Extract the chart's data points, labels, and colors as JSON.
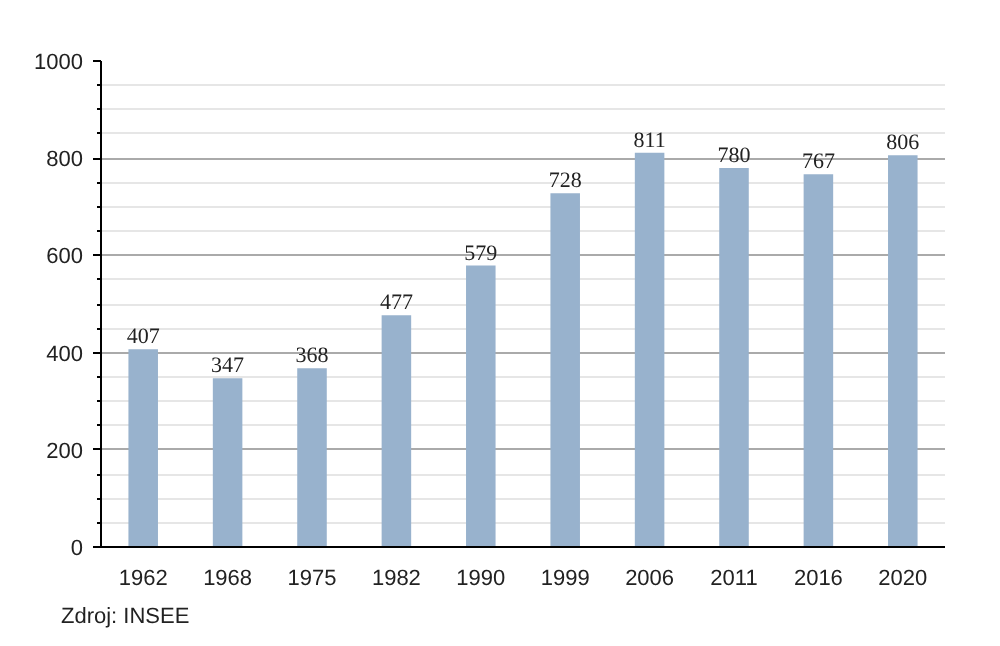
{
  "chart_data": {
    "type": "bar",
    "categories": [
      "1962",
      "1968",
      "1975",
      "1982",
      "1990",
      "1999",
      "2006",
      "2011",
      "2016",
      "2020"
    ],
    "values": [
      407,
      347,
      368,
      477,
      579,
      728,
      811,
      780,
      767,
      806
    ],
    "color": "#98b2cd",
    "ylim": [
      0,
      1000
    ],
    "yticks": [
      0,
      200,
      400,
      600,
      800,
      1000
    ],
    "grid": "y",
    "data_labels": true,
    "annotations": [
      "Zdroj: INSEE"
    ]
  }
}
